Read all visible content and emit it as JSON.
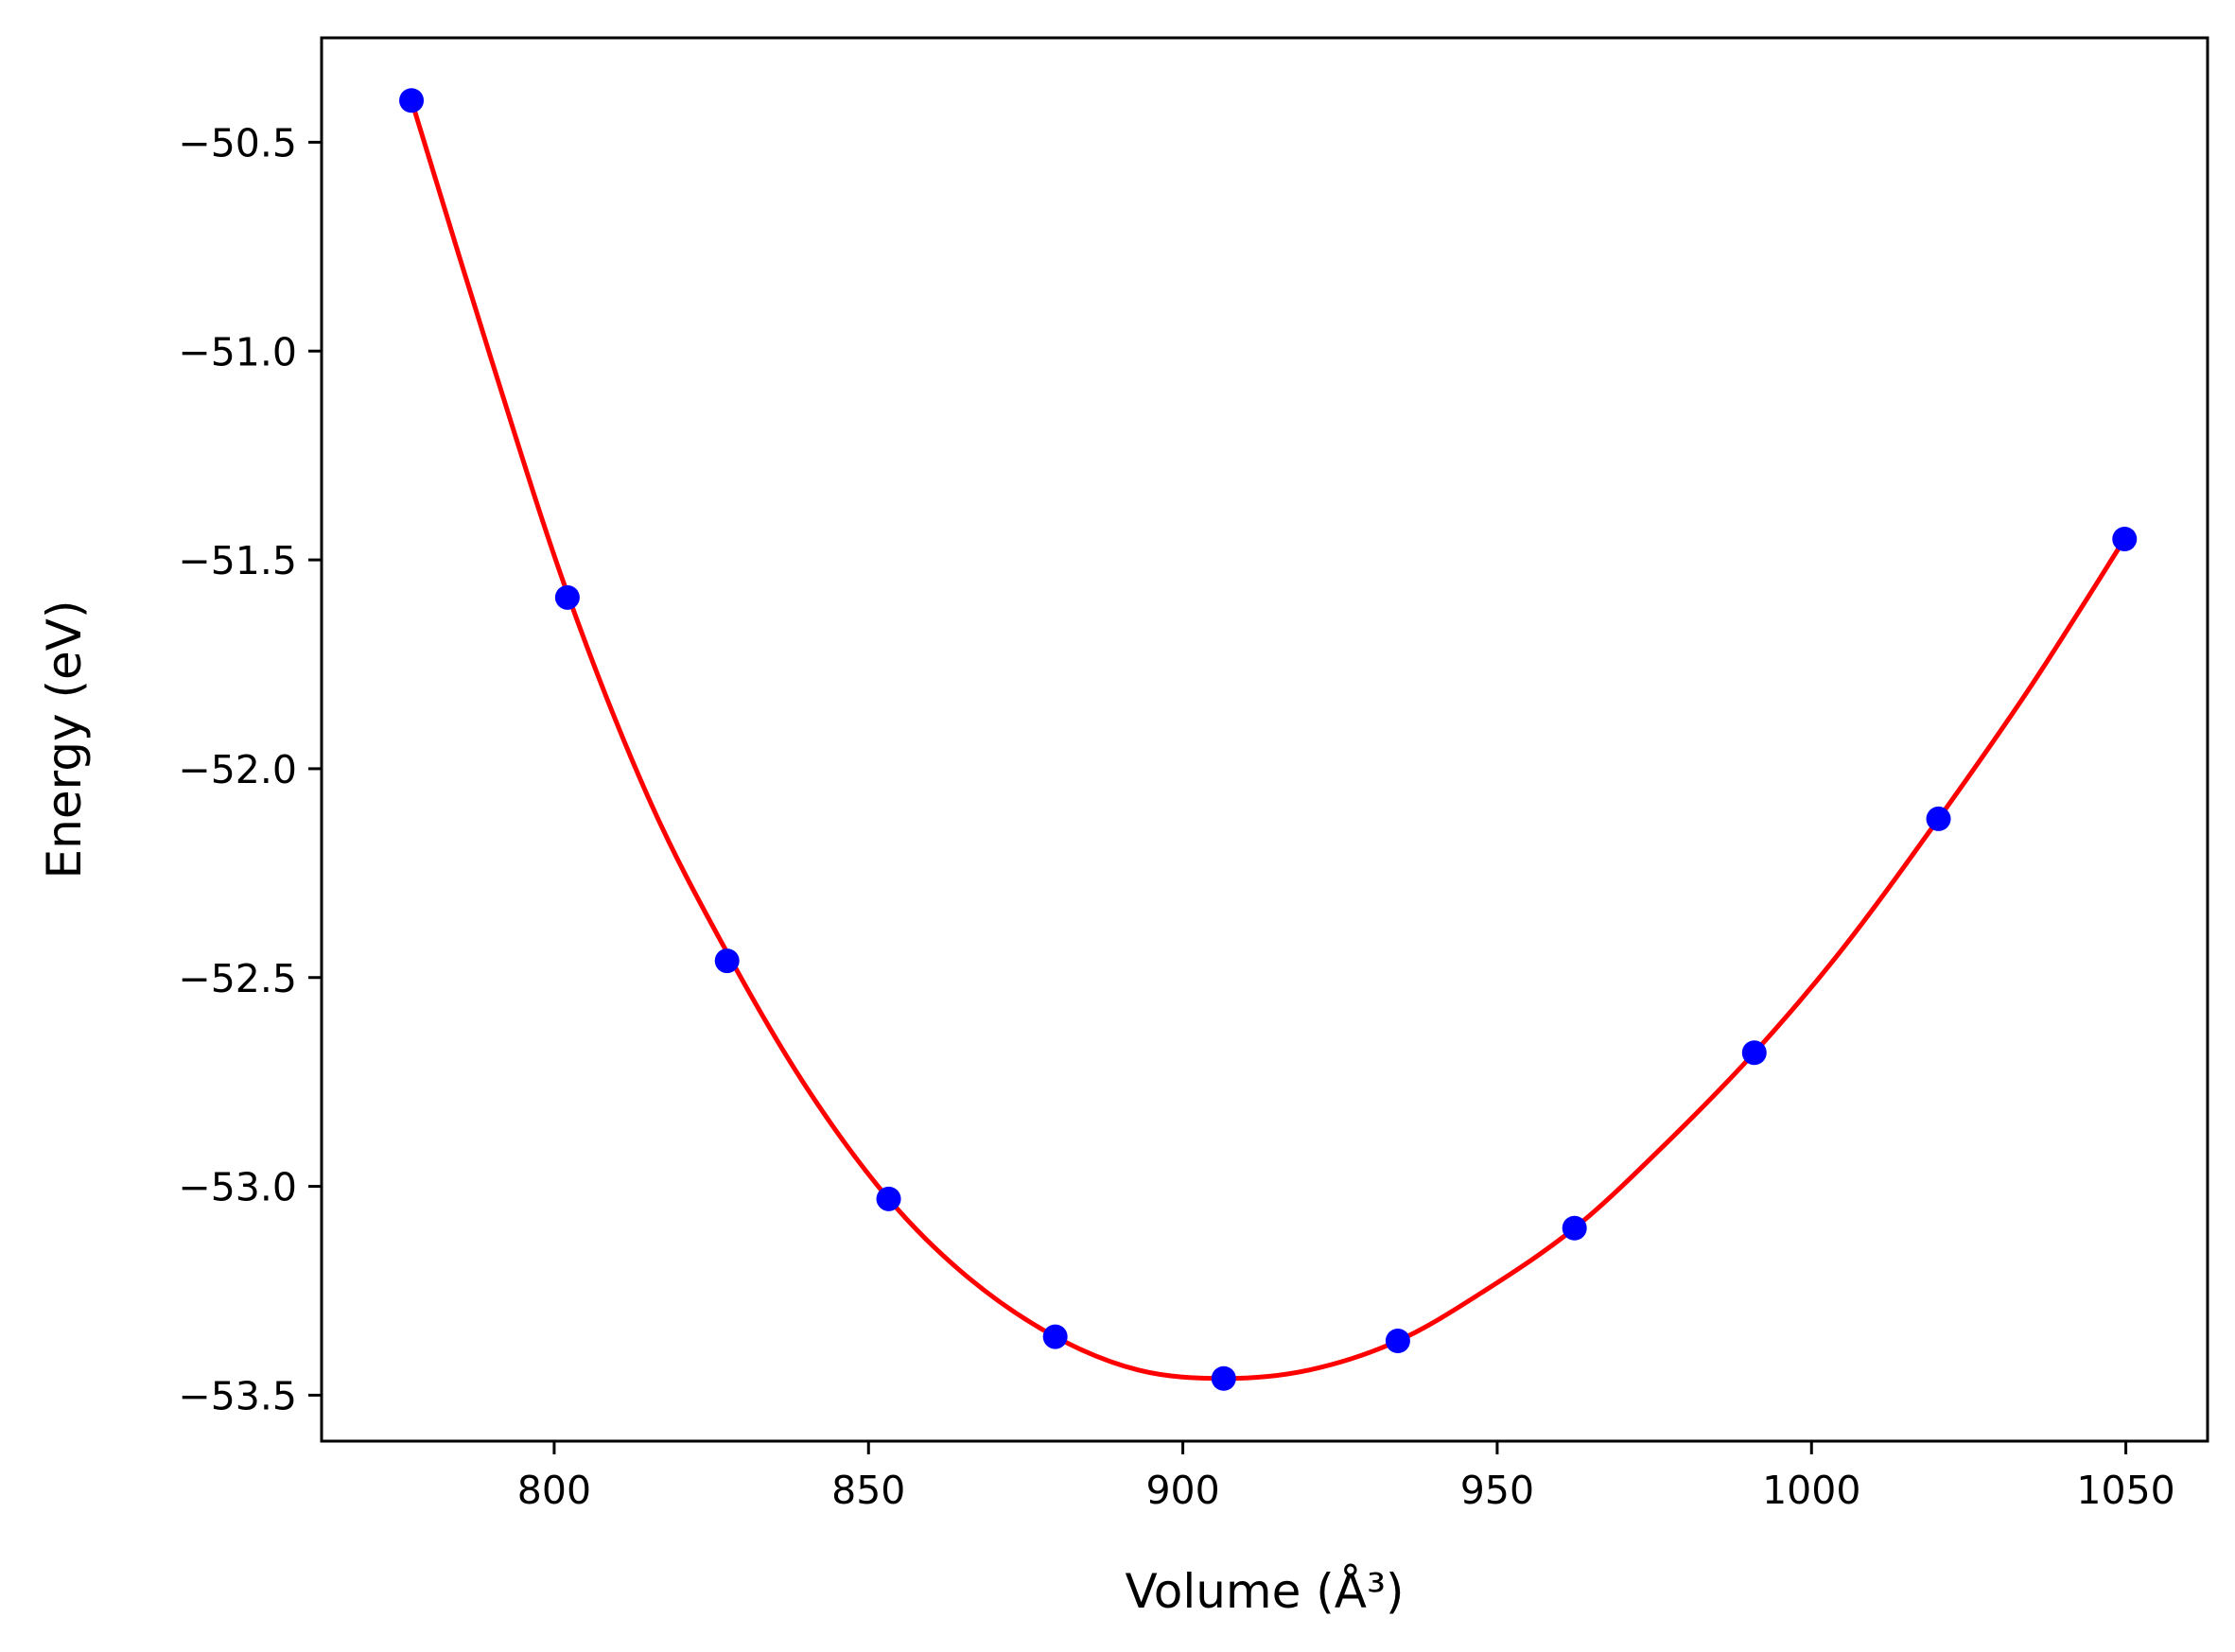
{
  "chart_data": {
    "type": "scatter",
    "xlabel": "Volume (Å³)",
    "ylabel": "Energy (eV)",
    "xlim": [
      763,
      1063
    ],
    "ylim": [
      -53.61,
      -50.25
    ],
    "xticks": [
      800,
      850,
      900,
      950,
      1000,
      1050
    ],
    "xtick_labels": [
      "800",
      "850",
      "900",
      "950",
      "1000",
      "1050"
    ],
    "yticks": [
      -50.5,
      -51.0,
      -51.5,
      -52.0,
      -52.5,
      -53.0,
      -53.5
    ],
    "ytick_labels": [
      "−50.5",
      "−51.0",
      "−51.5",
      "−52.0",
      "−52.5",
      "−53.0",
      "−53.5"
    ],
    "grid": false,
    "legend": "none",
    "series": [
      {
        "kind": "points",
        "color": "#0000ff",
        "x": [
          777.3,
          802.1,
          827.5,
          853.2,
          879.7,
          906.5,
          934.2,
          962.3,
          990.9,
          1020.2,
          1049.8
        ],
        "y": [
          -50.4,
          -51.59,
          -52.46,
          -53.03,
          -53.36,
          -53.46,
          -53.37,
          -53.1,
          -52.68,
          -52.12,
          -51.45
        ]
      },
      {
        "kind": "fit-curve",
        "color": "#ff0000",
        "x": [
          777.3,
          790,
          802.1,
          815,
          827.5,
          840,
          853.2,
          866,
          879.7,
          893,
          906.5,
          920,
          934.2,
          948,
          962.3,
          976,
          990.9,
          1005,
          1020.2,
          1035,
          1049.8
        ],
        "y": [
          -50.4,
          -51.02,
          -51.58,
          -52.07,
          -52.44,
          -52.76,
          -53.03,
          -53.22,
          -53.36,
          -53.44,
          -53.46,
          -53.44,
          -53.37,
          -53.25,
          -53.1,
          -52.91,
          -52.68,
          -52.43,
          -52.12,
          -51.8,
          -51.45
        ]
      }
    ]
  }
}
